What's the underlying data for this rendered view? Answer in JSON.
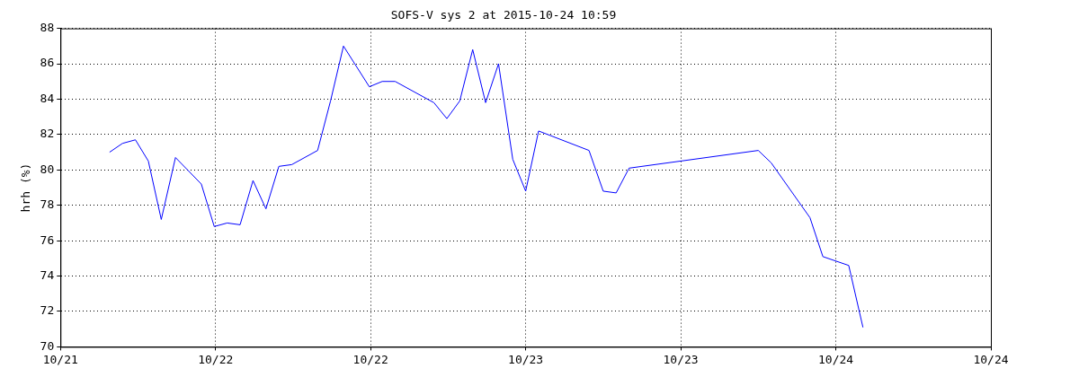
{
  "chart_data": {
    "type": "line",
    "title": "SOFS-V sys 2 at 2015-10-24 10:59",
    "ylabel": "hrh (%)",
    "x": [
      "2015-10-21T15:48",
      "2015-10-21T16:48",
      "2015-10-21T17:48",
      "2015-10-21T18:48",
      "2015-10-21T19:48",
      "2015-10-21T20:54",
      "2015-10-21T22:54",
      "2015-10-21T23:54",
      "2015-10-22T00:54",
      "2015-10-22T01:54",
      "2015-10-22T02:54",
      "2015-10-22T03:54",
      "2015-10-22T04:54",
      "2015-10-22T05:54",
      "2015-10-22T07:54",
      "2015-10-22T08:54",
      "2015-10-22T09:54",
      "2015-10-22T11:54",
      "2015-10-22T12:54",
      "2015-10-22T13:54",
      "2015-10-22T16:54",
      "2015-10-22T17:54",
      "2015-10-22T18:54",
      "2015-10-22T19:54",
      "2015-10-22T20:54",
      "2015-10-22T21:54",
      "2015-10-22T23:00",
      "2015-10-23T00:00",
      "2015-10-23T01:00",
      "2015-10-23T04:54",
      "2015-10-23T06:00",
      "2015-10-23T07:00",
      "2015-10-23T08:00",
      "2015-10-23T18:00",
      "2015-10-23T19:00",
      "2015-10-23T22:00",
      "2015-10-23T23:00",
      "2015-10-24T01:00",
      "2015-10-24T02:06"
    ],
    "series": [
      {
        "color": "#0000ff",
        "values": [
          81.0,
          81.5,
          81.7,
          80.5,
          77.2,
          80.7,
          79.2,
          76.8,
          77.0,
          76.9,
          79.4,
          77.8,
          80.2,
          80.3,
          81.1,
          83.9,
          87.0,
          84.7,
          85.0,
          85.0,
          83.8,
          82.9,
          83.9,
          86.8,
          83.8,
          86.0,
          80.6,
          78.8,
          82.2,
          81.1,
          78.8,
          78.7,
          80.1,
          81.1,
          80.4,
          77.3,
          75.1,
          74.6,
          71.1
        ]
      }
    ],
    "xlim": [
      "2015-10-21T12:00",
      "2015-10-24T12:00"
    ],
    "xticks": [
      {
        "value": "2015-10-21T12:00",
        "label": "10/21"
      },
      {
        "value": "2015-10-22T00:00",
        "label": "10/22"
      },
      {
        "value": "2015-10-22T12:00",
        "label": "10/22"
      },
      {
        "value": "2015-10-23T00:00",
        "label": "10/23"
      },
      {
        "value": "2015-10-23T12:00",
        "label": "10/23"
      },
      {
        "value": "2015-10-24T00:00",
        "label": "10/24"
      },
      {
        "value": "2015-10-24T12:00",
        "label": "10/24"
      }
    ],
    "ylim": [
      70,
      88
    ],
    "yticks": [
      70,
      72,
      74,
      76,
      78,
      80,
      82,
      84,
      86,
      88
    ],
    "grid": true,
    "legend": false,
    "marker": "none",
    "line_style": "solid"
  }
}
